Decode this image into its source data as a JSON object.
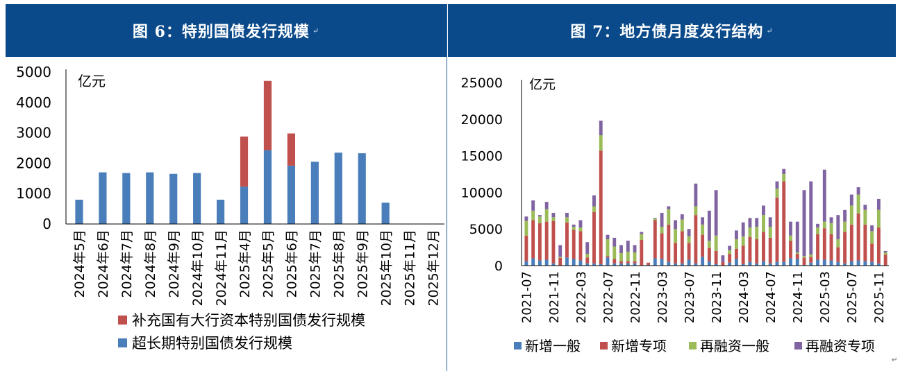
{
  "left": {
    "title": "图 6：特别国债发行规模",
    "title_mark": "↵",
    "chart_data": {
      "type": "bar",
      "stacked": true,
      "title": "图 6：特别国债发行规模",
      "unit_label": "亿元",
      "ylim": [
        0,
        5000
      ],
      "yticks": [
        "5000",
        "4000",
        "3000",
        "2000",
        "1000",
        "0"
      ],
      "categories": [
        "2024年5月",
        "2024年6月",
        "2024年7月",
        "2024年8月",
        "2024年9月",
        "2024年10月",
        "2024年11月",
        "2025年4月",
        "2025年5月",
        "2025年6月",
        "2025年7月",
        "2025年8月",
        "2025年9月",
        "2025年10月",
        "2025年11月",
        "2025年12月"
      ],
      "series": [
        {
          "name": "超长期特别国债发行规模",
          "color": "#4a7ebb",
          "values": [
            800,
            1700,
            1680,
            1700,
            1650,
            1680,
            800,
            1230,
            2430,
            1920,
            2050,
            2350,
            2330,
            700,
            0,
            0
          ]
        },
        {
          "name": "补充国有大行资本特别国债发行规模",
          "color": "#c0504d",
          "values": [
            0,
            0,
            0,
            0,
            0,
            0,
            0,
            1650,
            2280,
            1060,
            0,
            0,
            0,
            0,
            0,
            0
          ]
        }
      ],
      "legend": [
        "补充国有大行资本特别国债发行规模",
        "超长期特别国债发行规模"
      ],
      "legend_colors": [
        "#c0504d",
        "#4a7ebb"
      ]
    }
  },
  "right": {
    "title": "图 7：地方债月度发行结构",
    "title_mark": "↵",
    "corner_mark": "↵",
    "chart_data": {
      "type": "bar",
      "stacked": true,
      "title": "图 7：地方债月度发行结构",
      "unit_label": "亿元",
      "ylim": [
        0,
        25000
      ],
      "yticks": [
        "25000",
        "20000",
        "15000",
        "10000",
        "5000",
        "0"
      ],
      "x_tick_labels": [
        "2021-07",
        "2021-11",
        "2022-03",
        "2022-07",
        "2022-11",
        "2023-03",
        "2023-07",
        "2023-11",
        "2024-03",
        "2024-07",
        "2024-11",
        "2025-03",
        "2025-07",
        "2025-11"
      ],
      "categories": [
        "2021-07",
        "2021-08",
        "2021-09",
        "2021-10",
        "2021-11",
        "2021-12",
        "2022-01",
        "2022-02",
        "2022-03",
        "2022-04",
        "2022-05",
        "2022-06",
        "2022-07",
        "2022-08",
        "2022-09",
        "2022-10",
        "2022-11",
        "2022-12",
        "2023-01",
        "2023-02",
        "2023-03",
        "2023-04",
        "2023-05",
        "2023-06",
        "2023-07",
        "2023-08",
        "2023-09",
        "2023-10",
        "2023-11",
        "2023-12",
        "2024-01",
        "2024-02",
        "2024-03",
        "2024-04",
        "2024-05",
        "2024-06",
        "2024-07",
        "2024-08",
        "2024-09",
        "2024-10",
        "2024-11",
        "2024-12",
        "2025-01",
        "2025-02",
        "2025-03",
        "2025-04",
        "2025-05",
        "2025-06",
        "2025-07",
        "2025-08",
        "2025-09",
        "2025-10",
        "2025-11",
        "2025-12"
      ],
      "series": [
        {
          "name": "新增一般",
          "color": "#4a7ebb",
          "values": [
            600,
            1000,
            700,
            800,
            300,
            50,
            1100,
            900,
            700,
            300,
            300,
            200,
            1100,
            300,
            300,
            300,
            300,
            0,
            100,
            1000,
            900,
            500,
            300,
            300,
            800,
            300,
            1200,
            600,
            200,
            0,
            400,
            900,
            200,
            500,
            300,
            600,
            300,
            500,
            500,
            1000,
            900,
            100,
            400,
            800,
            800,
            700,
            500,
            300,
            600,
            700,
            600,
            500,
            300,
            0
          ]
        },
        {
          "name": "新增专项",
          "color": "#c0504d",
          "values": [
            3500,
            5200,
            5100,
            5200,
            5800,
            1000,
            4800,
            4000,
            4000,
            800,
            7000,
            15500,
            200,
            600,
            300,
            300,
            300,
            3500,
            300,
            5200,
            3500,
            5100,
            2800,
            4400,
            2300,
            6600,
            3000,
            1800,
            1800,
            500,
            1200,
            1400,
            2500,
            3400,
            3300,
            4000,
            3500,
            8800,
            11000,
            2400,
            700,
            1000,
            800,
            3500,
            4300,
            3600,
            2000,
            4300,
            5000,
            6400,
            5000,
            2500,
            4900,
            1500
          ]
        },
        {
          "name": "再融资一般",
          "color": "#9bbb59",
          "values": [
            2000,
            1300,
            900,
            1700,
            500,
            150,
            700,
            400,
            500,
            500,
            800,
            2100,
            2300,
            1700,
            1100,
            1300,
            1200,
            800,
            0,
            200,
            900,
            2100,
            1900,
            1600,
            900,
            1200,
            1400,
            1000,
            2100,
            0,
            500,
            1300,
            1300,
            1300,
            1700,
            2300,
            1500,
            1200,
            1000,
            700,
            200,
            200,
            300,
            900,
            900,
            1500,
            1100,
            1400,
            2600,
            2600,
            2000,
            1700,
            2400,
            300
          ]
        },
        {
          "name": "再融资专项",
          "color": "#8064a2",
          "values": [
            600,
            1400,
            200,
            1000,
            600,
            1600,
            600,
            300,
            1000,
            1600,
            1500,
            2000,
            600,
            1200,
            1100,
            1500,
            1000,
            300,
            0,
            100,
            1900,
            400,
            1200,
            700,
            1000,
            3100,
            1000,
            4100,
            6200,
            900,
            600,
            1200,
            1900,
            1300,
            1200,
            1300,
            1300,
            1000,
            700,
            1900,
            4200,
            9000,
            10000,
            500,
            7100,
            800,
            3300,
            1600,
            1500,
            1000,
            700,
            800,
            1500,
            200
          ]
        }
      ],
      "legend": [
        "新增一般",
        "新增专项",
        "再融资一般",
        "再融资专项"
      ],
      "legend_colors": [
        "#4a7ebb",
        "#c0504d",
        "#9bbb59",
        "#8064a2"
      ]
    }
  }
}
